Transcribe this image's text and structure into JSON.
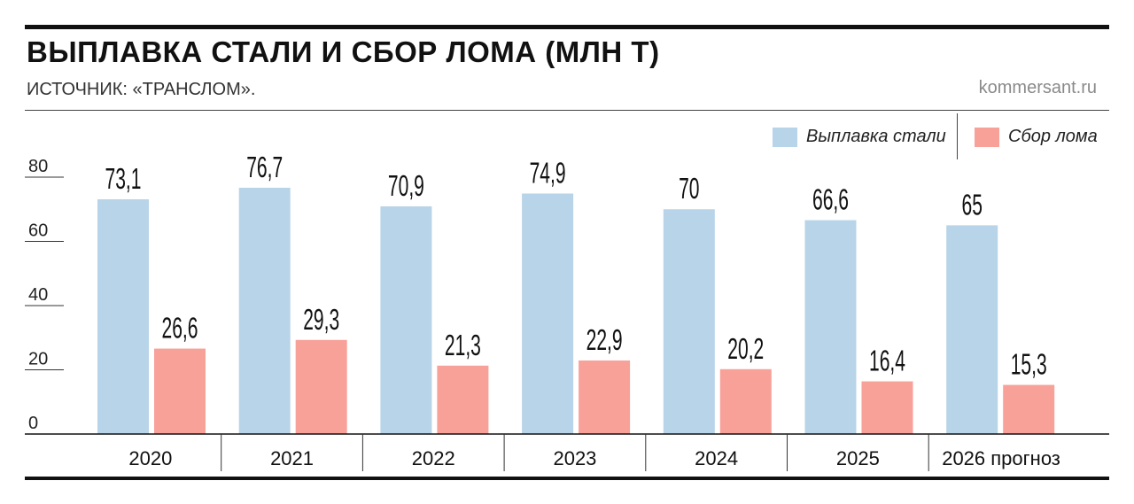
{
  "header": {
    "title": "ВЫПЛАВКА СТАЛИ И СБОР ЛОМА (МЛН Т)",
    "source": "ИСТОЧНИК: «ТРАНСЛОМ».",
    "site": "kommersant.ru"
  },
  "colors": {
    "steel": "#b8d4e8",
    "scrap": "#f7a199",
    "rule": "#111111"
  },
  "chart_data": {
    "type": "bar",
    "categories": [
      "2020",
      "2021",
      "2022",
      "2023",
      "2024",
      "2025",
      "2026 прогноз"
    ],
    "series": [
      {
        "name": "Выплавка стали",
        "values": [
          73.1,
          76.7,
          70.9,
          74.9,
          70,
          66.6,
          65
        ],
        "labels": [
          "73,1",
          "76,7",
          "70,9",
          "74,9",
          "70",
          "66,6",
          "65"
        ]
      },
      {
        "name": "Сбор лома",
        "values": [
          26.6,
          29.3,
          21.3,
          22.9,
          20.2,
          16.4,
          15.3
        ],
        "labels": [
          "26,6",
          "29,3",
          "21,3",
          "22,9",
          "20,2",
          "16,4",
          "15,3"
        ]
      }
    ],
    "yticks": [
      "0",
      "20",
      "40",
      "60",
      "80"
    ],
    "ylim": [
      0,
      80
    ],
    "grid": false,
    "legend": "top-right"
  }
}
